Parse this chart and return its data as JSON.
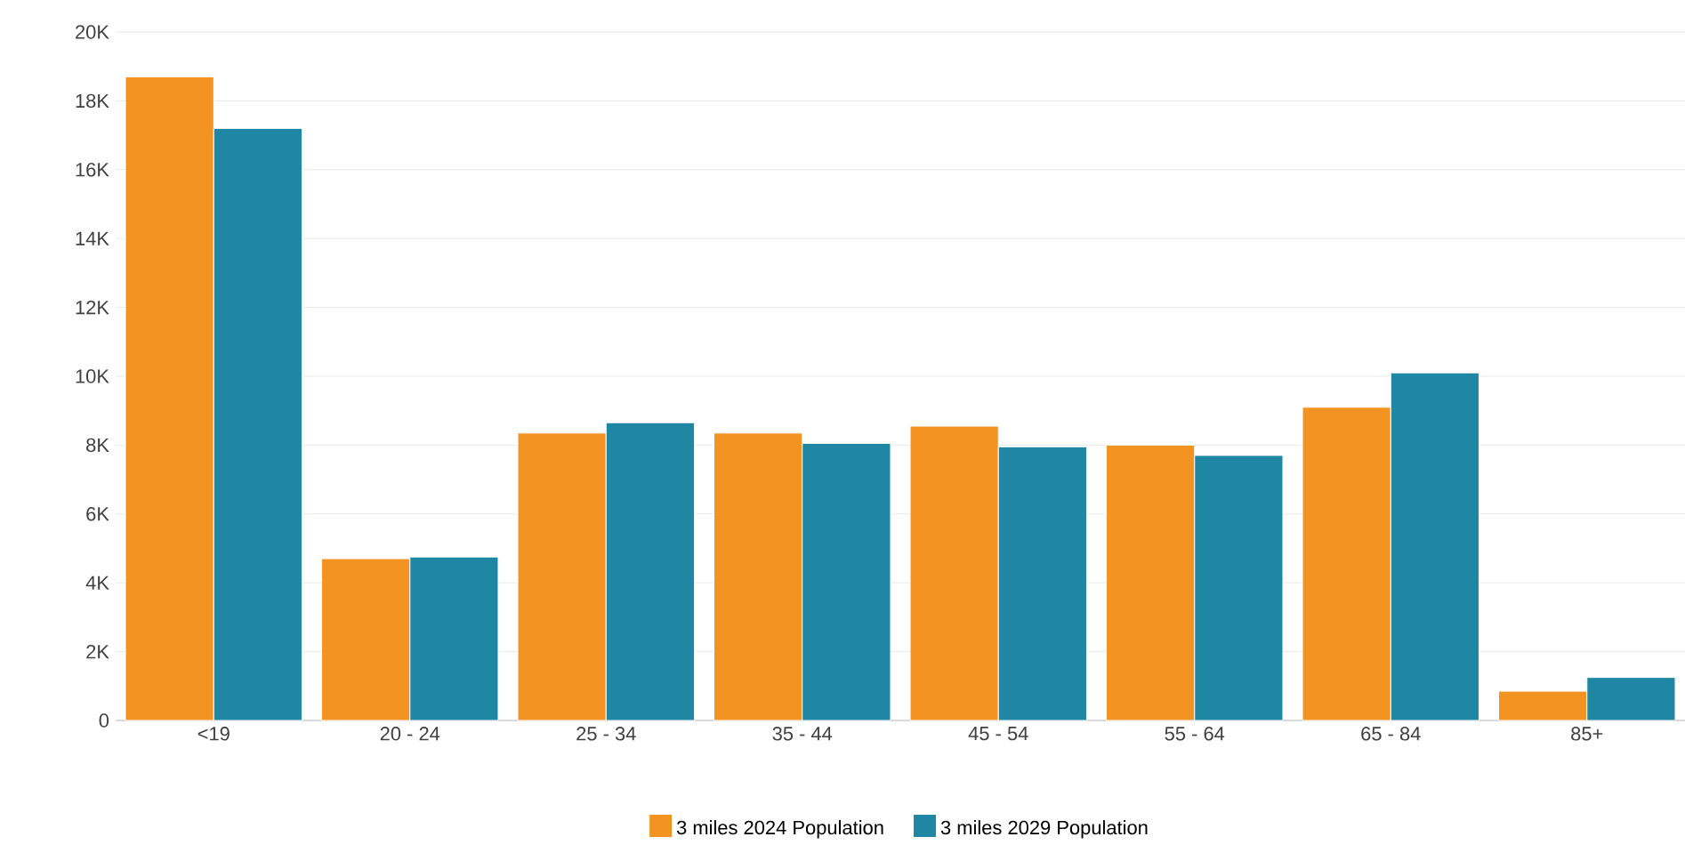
{
  "chart_data": {
    "type": "bar",
    "categories": [
      "<19",
      "20 - 24",
      "25 - 34",
      "35 - 44",
      "45 - 54",
      "55 - 64",
      "65 - 84",
      "85+"
    ],
    "series": [
      {
        "name": "3 miles 2024 Population",
        "color": "#f39322",
        "values": [
          18700,
          4700,
          8350,
          8350,
          8550,
          8000,
          9100,
          850
        ]
      },
      {
        "name": "3 miles 2029 Population",
        "color": "#1f86a3",
        "values": [
          17200,
          4750,
          8650,
          8050,
          7950,
          7700,
          10100,
          1250
        ]
      }
    ],
    "ylim": [
      0,
      20000
    ],
    "yticks": [
      {
        "value": 0,
        "label": "0"
      },
      {
        "value": 2000,
        "label": "2K"
      },
      {
        "value": 4000,
        "label": "4K"
      },
      {
        "value": 6000,
        "label": "6K"
      },
      {
        "value": 8000,
        "label": "8K"
      },
      {
        "value": 10000,
        "label": "10K"
      },
      {
        "value": 12000,
        "label": "12K"
      },
      {
        "value": 14000,
        "label": "14K"
      },
      {
        "value": 16000,
        "label": "16K"
      },
      {
        "value": 18000,
        "label": "18K"
      },
      {
        "value": 20000,
        "label": "20K"
      }
    ],
    "grid": "y",
    "legend": "bottom"
  }
}
